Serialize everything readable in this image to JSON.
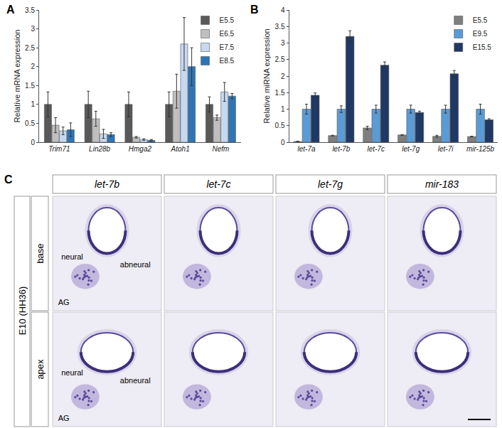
{
  "panel_labels": [
    "A",
    "B"
  ],
  "chart_data": [
    {
      "type": "bar",
      "y_label": "Relative mRNA expression",
      "categories": [
        "Trim71",
        "Lin28b",
        "Hmga2",
        "Atoh1",
        "Nefm"
      ],
      "series": [
        {
          "name": "E5.5",
          "color": "#595959",
          "values": [
            1,
            1,
            1,
            1,
            1
          ],
          "errors": [
            0.33,
            0.35,
            0.33,
            0.33,
            0.2
          ]
        },
        {
          "name": "E6.5",
          "color": "#bfbfbf",
          "values": [
            0.45,
            0.62,
            0.13,
            1.35,
            0.65
          ],
          "errors": [
            0.2,
            0.2,
            0.02,
            0.45,
            0.07
          ]
        },
        {
          "name": "E7.5",
          "color": "#c6d9f1",
          "values": [
            0.3,
            0.22,
            0.07,
            2.6,
            1.33
          ],
          "errors": [
            0.1,
            0.12,
            0.02,
            0.7,
            0.25
          ]
        },
        {
          "name": "E8.5",
          "color": "#2e75b6",
          "values": [
            0.33,
            0.2,
            0.05,
            2.0,
            1.22
          ],
          "errors": [
            0.18,
            0.05,
            0.02,
            0.5,
            0.07
          ]
        }
      ],
      "ylim": [
        0,
        3.5
      ],
      "yticks": [
        0,
        0.5,
        1,
        1.5,
        2,
        2.5,
        3,
        3.5
      ],
      "grid": false,
      "legend": "upper right"
    },
    {
      "type": "bar",
      "y_label": "Relative miRNA expression",
      "categories": [
        "let-7a",
        "let-7b",
        "let-7c",
        "let-7g",
        "let-7i",
        "mir-125b"
      ],
      "series": [
        {
          "name": "E5.5",
          "color": "#7f7f7f",
          "values": [
            0.02,
            0.2,
            0.43,
            0.22,
            0.18,
            0.17
          ],
          "errors": [
            0.01,
            0.01,
            0.05,
            0.01,
            0.03,
            0.01
          ]
        },
        {
          "name": "E9.5",
          "color": "#5b9bd5",
          "values": [
            1,
            1,
            1,
            1,
            1,
            1
          ],
          "errors": [
            0.15,
            0.1,
            0.12,
            0.12,
            0.12,
            0.15
          ]
        },
        {
          "name": "E15.5",
          "color": "#1f3864",
          "values": [
            1.42,
            3.2,
            2.33,
            0.9,
            2.07,
            0.68
          ],
          "errors": [
            0.07,
            0.17,
            0.1,
            0.04,
            0.1,
            0.03
          ]
        }
      ],
      "ylim": [
        0,
        4
      ],
      "yticks": [
        0,
        0.5,
        1,
        1.5,
        2,
        2.5,
        3,
        3.5,
        4
      ],
      "grid": false,
      "legend": "upper right"
    }
  ],
  "panel_c": {
    "label": "C",
    "stage": "E10 (HH36)",
    "columns": [
      "let-7b",
      "let-7c",
      "let-7g",
      "mir-183"
    ],
    "rows": [
      "base",
      "apex"
    ],
    "region_labels": {
      "neural": "neural",
      "abneural": "abneural",
      "ganglion": "AG"
    }
  }
}
